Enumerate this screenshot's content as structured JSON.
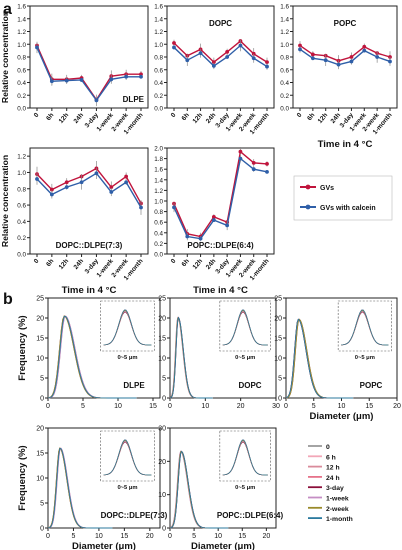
{
  "figure": {
    "panel_labels": [
      "a",
      "b"
    ],
    "time_axis_title": "Time in 4 °C",
    "conc_axis_title": "Relative concentration",
    "freq_axis_title": "Frequency (%)",
    "diam_axis_title": "Diameter (μm)",
    "inset_label": "0~5 μm",
    "time_categories": [
      "0",
      "6h",
      "12h",
      "24h",
      "3-day",
      "1-week",
      "2-week",
      "1-month"
    ]
  },
  "colors": {
    "gv": "#c0143c",
    "gv_calcein": "#2f5fa8"
  },
  "chart_data": [
    {
      "type": "line",
      "title": "DLPE",
      "xlabel": "",
      "ylabel": "Relative concentration",
      "categories": [
        "0",
        "6h",
        "12h",
        "24h",
        "3-day",
        "1-week",
        "2-week",
        "1-month"
      ],
      "ylim": [
        0,
        1.6
      ],
      "series": [
        {
          "name": "GVs",
          "values": [
            0.98,
            0.45,
            0.45,
            0.47,
            0.13,
            0.5,
            0.53,
            0.53
          ]
        },
        {
          "name": "GVs with calcein",
          "values": [
            0.95,
            0.42,
            0.43,
            0.44,
            0.12,
            0.45,
            0.49,
            0.49
          ]
        }
      ]
    },
    {
      "type": "line",
      "title": "DOPC",
      "xlabel": "",
      "ylabel": "",
      "categories": [
        "0",
        "6h",
        "12h",
        "24h",
        "3-day",
        "1-week",
        "2-week",
        "1-month"
      ],
      "ylim": [
        0,
        1.6
      ],
      "series": [
        {
          "name": "GVs",
          "values": [
            1.02,
            0.82,
            0.92,
            0.72,
            0.88,
            1.05,
            0.85,
            0.72
          ]
        },
        {
          "name": "GVs with calcein",
          "values": [
            0.95,
            0.75,
            0.86,
            0.66,
            0.8,
            0.98,
            0.78,
            0.65
          ]
        }
      ]
    },
    {
      "type": "line",
      "title": "POPC",
      "xlabel": "Time in 4 °C",
      "ylabel": "",
      "categories": [
        "0",
        "6h",
        "12h",
        "24h",
        "3-day",
        "1-week",
        "2-week",
        "1-month"
      ],
      "ylim": [
        0,
        1.6
      ],
      "series": [
        {
          "name": "GVs",
          "values": [
            0.98,
            0.84,
            0.82,
            0.74,
            0.8,
            0.96,
            0.86,
            0.8
          ]
        },
        {
          "name": "GVs with calcein",
          "values": [
            0.92,
            0.78,
            0.75,
            0.68,
            0.73,
            0.9,
            0.8,
            0.73
          ]
        }
      ]
    },
    {
      "type": "line",
      "title": "DOPC::DLPE(7:3)",
      "xlabel": "Time in 4 °C",
      "ylabel": "Relative concentration",
      "categories": [
        "0",
        "6h",
        "12h",
        "24h",
        "3-day",
        "1-week",
        "2-week",
        "1-month"
      ],
      "ylim": [
        0,
        1.3
      ],
      "series": [
        {
          "name": "GVs",
          "values": [
            0.98,
            0.79,
            0.88,
            0.95,
            1.05,
            0.82,
            0.95,
            0.62
          ]
        },
        {
          "name": "GVs with calcein",
          "values": [
            0.92,
            0.73,
            0.82,
            0.88,
            0.99,
            0.76,
            0.88,
            0.57
          ]
        }
      ]
    },
    {
      "type": "line",
      "title": "POPC::DLPE(6:4)",
      "xlabel": "Time in 4 °C",
      "ylabel": "",
      "categories": [
        "0",
        "6h",
        "12h",
        "24h",
        "3-day",
        "1-week",
        "2-week",
        "1-month"
      ],
      "ylim": [
        0,
        2.0
      ],
      "series": [
        {
          "name": "GVs",
          "values": [
            0.95,
            0.38,
            0.33,
            0.7,
            0.6,
            1.93,
            1.72,
            1.7
          ]
        },
        {
          "name": "GVs with calcein",
          "values": [
            0.88,
            0.33,
            0.29,
            0.64,
            0.54,
            1.8,
            1.6,
            1.55
          ]
        }
      ]
    },
    {
      "type": "line",
      "title": "DLPE",
      "xlabel": "",
      "ylabel": "Frequency (%)",
      "xlim": [
        0,
        16
      ],
      "xticks": [
        0,
        5,
        10,
        15
      ],
      "ylim": [
        0,
        25
      ],
      "yticks": [
        0,
        5,
        10,
        15,
        20,
        25
      ],
      "peak_x": 2.3,
      "peak_y": 20.5,
      "inset_label": "0~5 μm"
    },
    {
      "type": "line",
      "title": "DOPC",
      "xlabel": "",
      "ylabel": "",
      "xlim": [
        0,
        30
      ],
      "xticks": [
        0,
        10,
        20,
        30
      ],
      "ylim": [
        0,
        25
      ],
      "yticks": [
        0,
        5,
        10,
        15,
        20,
        25
      ],
      "peak_x": 2.2,
      "peak_y": 20.5,
      "inset_label": "0~5 μm"
    },
    {
      "type": "line",
      "title": "POPC",
      "xlabel": "Diameter (μm)",
      "ylabel": "",
      "xlim": [
        0,
        20
      ],
      "xticks": [
        0,
        5,
        10,
        15,
        20
      ],
      "ylim": [
        0,
        25
      ],
      "yticks": [
        0,
        5,
        10,
        15,
        20,
        25
      ],
      "peak_x": 2.2,
      "peak_y": 20.5,
      "inset_label": "0~5 μm"
    },
    {
      "type": "line",
      "title": "DOPC::DLPE(7:3)",
      "xlabel": "Diameter (μm)",
      "ylabel": "Frequency (%)",
      "xlim": [
        0,
        22
      ],
      "xticks": [
        0,
        5,
        10,
        15,
        20
      ],
      "ylim": [
        0,
        20
      ],
      "yticks": [
        0,
        5,
        10,
        15,
        20
      ],
      "peak_x": 2.3,
      "peak_y": 17,
      "inset_label": "0~5 μm"
    },
    {
      "type": "line",
      "title": "POPC::DLPE(6:4)",
      "xlabel": "Diameter (μm)",
      "ylabel": "",
      "xlim": [
        0,
        22
      ],
      "xticks": [
        0,
        5,
        10,
        15,
        20
      ],
      "ylim": [
        0,
        30
      ],
      "yticks": [
        0,
        10,
        20,
        30
      ],
      "peak_x": 2.2,
      "peak_y": 25,
      "inset_label": "0~5 μm"
    }
  ],
  "legend_a": [
    {
      "name": "GVs",
      "color": "#c0143c"
    },
    {
      "name": "GVs with calcein",
      "color": "#2f5fa8"
    }
  ],
  "legend_b": [
    {
      "name": "0",
      "color": "#9a9a9a"
    },
    {
      "name": "6 h",
      "color": "#f2a7b8"
    },
    {
      "name": "12 h",
      "color": "#d98b9b"
    },
    {
      "name": "24 h",
      "color": "#e6738a"
    },
    {
      "name": "3-day",
      "color": "#8b0f3a"
    },
    {
      "name": "1-week",
      "color": "#c58ec4"
    },
    {
      "name": "2-week",
      "color": "#9a8a2a"
    },
    {
      "name": "1-month",
      "color": "#2b7a9e"
    }
  ]
}
